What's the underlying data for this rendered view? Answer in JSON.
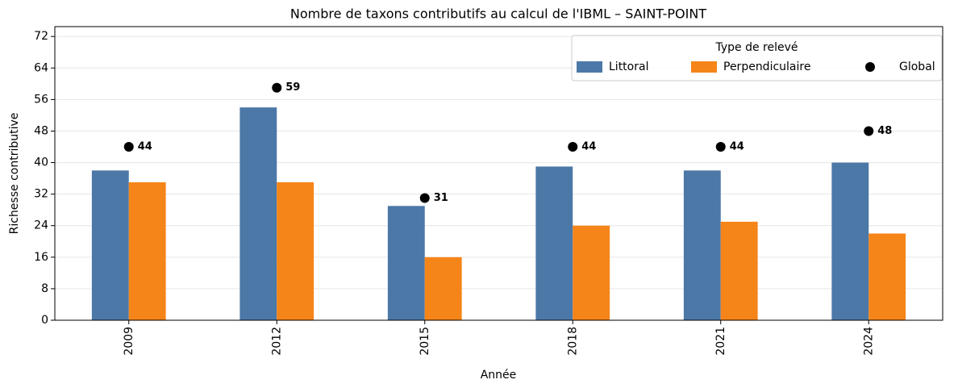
{
  "chart_data": {
    "type": "bar",
    "title": "Nombre de taxons contributifs au calcul de l'IBML – SAINT-POINT",
    "x_label": "Année",
    "y_label": "Richesse contributive",
    "categories": [
      "2009",
      "2012",
      "2015",
      "2018",
      "2021",
      "2024"
    ],
    "series": [
      {
        "name": "Littoral",
        "color": "#4c78a8",
        "kind": "bar",
        "values": [
          38,
          54,
          29,
          39,
          38,
          40
        ]
      },
      {
        "name": "Perpendiculaire",
        "color": "#f58518",
        "kind": "bar",
        "values": [
          35,
          35,
          16,
          24,
          25,
          22
        ]
      },
      {
        "name": "Global",
        "color": "#000000",
        "kind": "scatter",
        "values": [
          44,
          59,
          31,
          44,
          44,
          48
        ]
      }
    ],
    "ylim": [
      0,
      74.5
    ],
    "yticks": [
      0,
      8,
      16,
      24,
      32,
      40,
      48,
      56,
      64,
      72
    ],
    "grid": true,
    "legend_title": "Type de relevé",
    "legend": "upper right"
  }
}
